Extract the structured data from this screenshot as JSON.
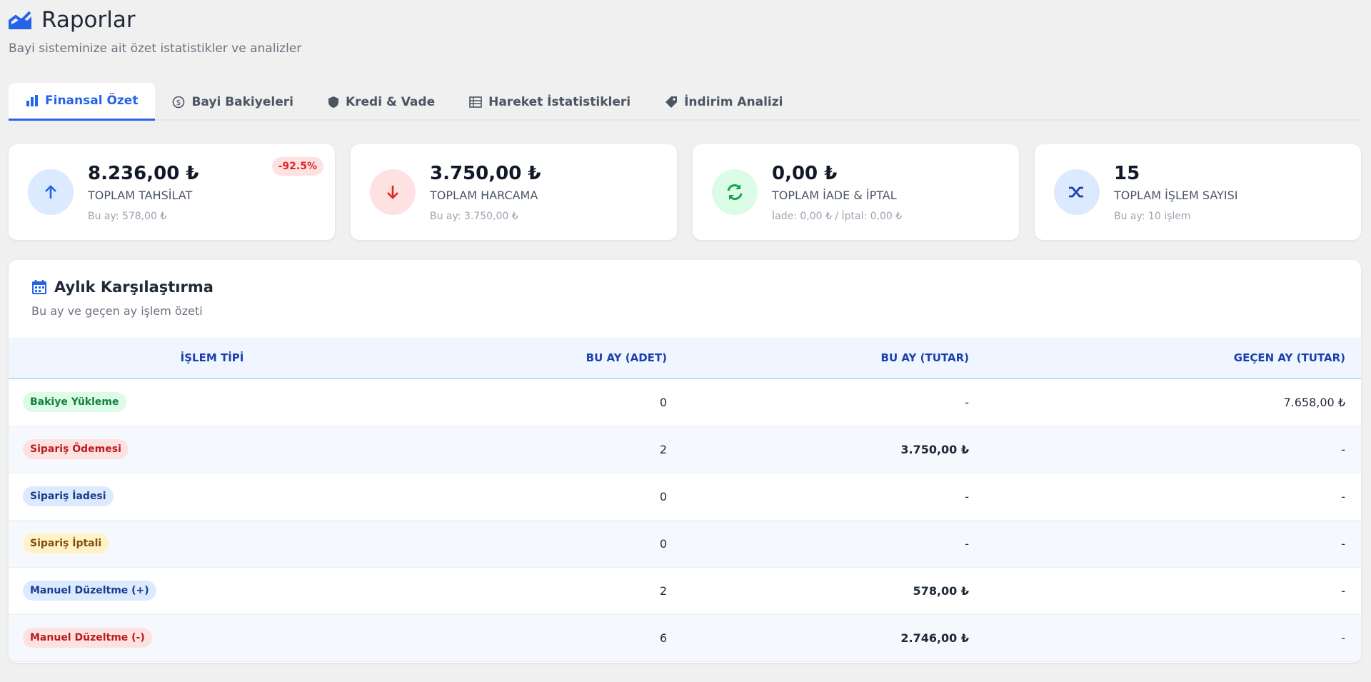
{
  "header": {
    "title": "Raporlar",
    "subtitle": "Bayi sisteminize ait özet istatistikler ve analizler"
  },
  "tabs": [
    "Finansal Özet",
    "Bayi Bakiyeleri",
    "Kredi & Vade",
    "Hareket İstatistikleri",
    "İndirim Analizi"
  ],
  "cards": [
    {
      "value": "8.236,00 ₺",
      "label": "TOPLAM TAHSİLAT",
      "note": "Bu ay: 578,00 ₺",
      "badge": "-92.5%"
    },
    {
      "value": "3.750,00 ₺",
      "label": "TOPLAM HARCAMA",
      "note": "Bu ay: 3.750,00 ₺"
    },
    {
      "value": "0,00 ₺",
      "label": "TOPLAM İADE & İPTAL",
      "note": "İade: 0,00 ₺ / İptal: 0,00 ₺"
    },
    {
      "value": "15",
      "label": "TOPLAM İŞLEM SAYISI",
      "note": "Bu ay: 10 işlem"
    }
  ],
  "table": {
    "title": "Aylık Karşılaştırma",
    "subtitle": "Bu ay ve geçen ay işlem özeti",
    "columns": [
      "İŞLEM TİPİ",
      "BU AY (ADET)",
      "BU AY (TUTAR)",
      "GEÇEN AY (TUTAR)"
    ],
    "rows": [
      [
        "Bakiye Yükleme",
        "0",
        "-",
        "7.658,00 ₺"
      ],
      [
        "Sipariş Ödemesi",
        "2",
        "3.750,00 ₺",
        "-"
      ],
      [
        "Sipariş İadesi",
        "0",
        "-",
        "-"
      ],
      [
        "Sipariş İptali",
        "0",
        "-",
        "-"
      ],
      [
        "Manuel Düzeltme (+)",
        "2",
        "578,00 ₺",
        "-"
      ],
      [
        "Manuel Düzeltme (-)",
        "6",
        "2.746,00 ₺",
        "-"
      ]
    ]
  }
}
